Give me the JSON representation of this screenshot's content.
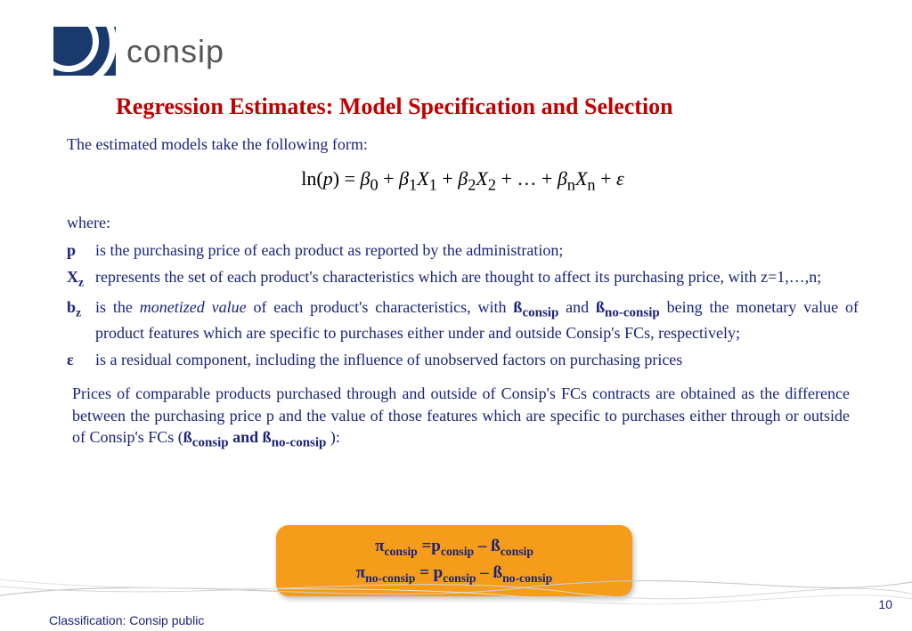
{
  "logo": {
    "text": "consip"
  },
  "title": "Regression Estimates: Model Specification and Selection",
  "intro": "The estimated models take the following form:",
  "equation_html": "ln(<i>p</i>) = <i>β</i><sub>0</sub> + <i>β</i><sub>1</sub><i>X</i><sub>1</sub> + <i>β</i><sub>2</sub><i>X</i><sub>2</sub> + … + <i>β</i><sub>n</sub><i>X</i><sub>n</sub> + <i>ε</i>",
  "where_label": "where:",
  "defs": {
    "p": {
      "sym": "p",
      "body": "is the purchasing price of each product as reported by the administration;"
    },
    "Xz": {
      "sym_html": "X<sub>z</sub>",
      "body": "represents the set of each product's characteristics which are thought to affect its purchasing price, with z=1,…,n;"
    },
    "bz": {
      "sym_html": "b<sub>z</sub>",
      "body_html": "is the <em class=\"ital\">monetized value</em> of each product's characteristics, with <b class=\"sym\">ß<sub>consip</sub></b> and <b class=\"sym\">ß<sub>no-consip</sub></b> being the monetary value of product features which are specific to purchases either under and outside Consip's FCs, respectively;"
    },
    "eps": {
      "sym": "ε",
      "body": "is a residual component, including the influence of unobserved factors on purchasing prices"
    }
  },
  "prices_para_html": "Prices of comparable products purchased through and outside of Consip's FCs contracts are obtained as the difference between the purchasing price p and the value of those features which are specific to purchases either through or outside of Consip's FCs (<b class=\"sym\">ß<sub>consip</sub> and ß<sub>no-consip</sub></b> ):",
  "formula_box": {
    "line1_html": "π<sub>consip</sub> =p<sub>consip</sub> – ß<sub>consip</sub>",
    "line2_html": "π<sub>no-consip</sub> = p<sub>consip</sub> – ß<sub>no-consip</sub>"
  },
  "page_number": "10",
  "classification": "Classification: Consip public",
  "colors": {
    "title": "#c00000",
    "body": "#1a237a",
    "box_bg": "#f59c1a",
    "logo_bg": "#1a3a6e",
    "logo_text": "#555555",
    "decor_stroke": "#c9c9c9"
  }
}
